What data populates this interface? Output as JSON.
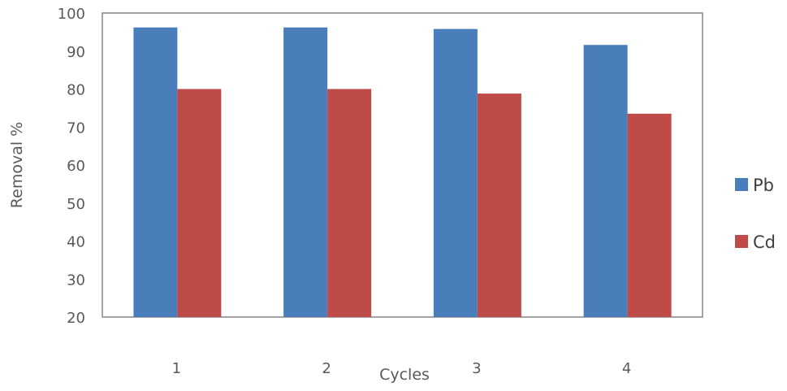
{
  "chart_data": {
    "type": "bar",
    "categories": [
      "1",
      "2",
      "3",
      "4"
    ],
    "series": [
      {
        "name": "Pb",
        "values": [
          96.2,
          96.2,
          95.8,
          91.6
        ],
        "color": "#4a7ebb"
      },
      {
        "name": "Cd",
        "values": [
          80.0,
          80.0,
          78.8,
          73.5
        ],
        "color": "#be4b48"
      }
    ],
    "xlabel": "Cycles",
    "ylabel": "Removal %",
    "ylim": [
      20,
      100
    ],
    "yticks": [
      20,
      30,
      40,
      50,
      60,
      70,
      80,
      90,
      100
    ],
    "grid": false,
    "legend": "right"
  }
}
